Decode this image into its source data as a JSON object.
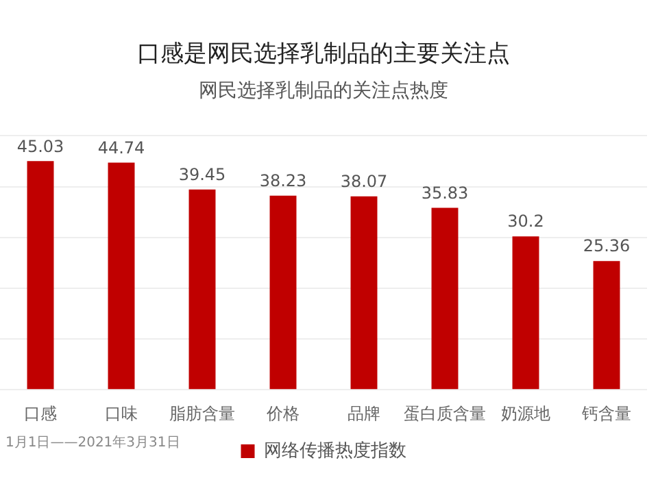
{
  "chart_data": {
    "type": "bar",
    "title": "口感是网民选择乳制品的主要关注点",
    "subtitle": "网民选择乳制品的关注点热度",
    "categories": [
      "口感",
      "口味",
      "脂肪含量",
      "价格",
      "品牌",
      "蛋白质含量",
      "奶源地",
      "钙含量"
    ],
    "series": [
      {
        "name": "网络传播热度指数",
        "color": "#c00000",
        "values": [
          45.03,
          44.74,
          39.45,
          38.23,
          38.07,
          35.83,
          30.2,
          25.36
        ]
      }
    ],
    "data_labels": true,
    "grid": "y",
    "legend": "bottom",
    "tick_labels": "x",
    "annotations": [
      "1月1日——2021年3月31日"
    ]
  }
}
